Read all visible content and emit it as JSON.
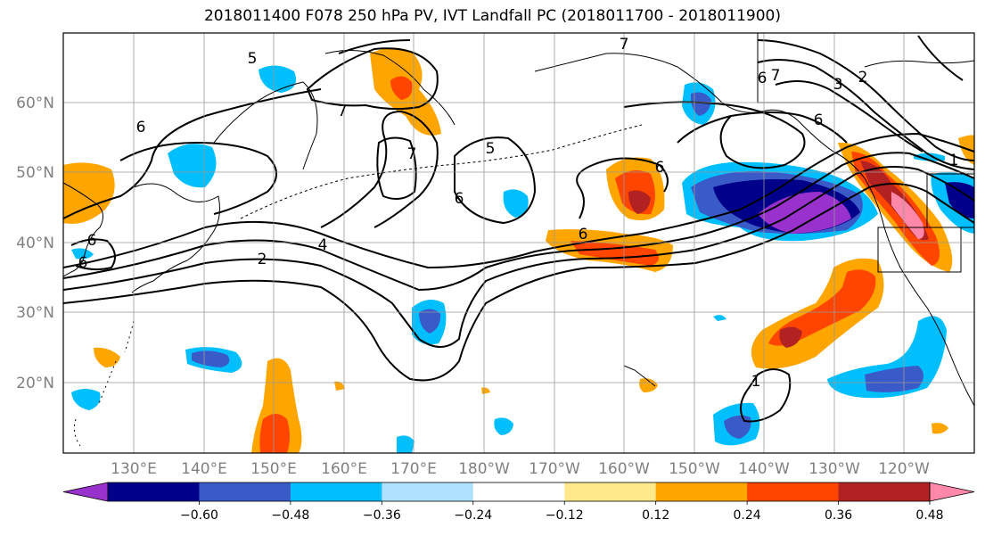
{
  "title": "2018011400 F078 250 hPa PV, IVT Landfall PC (2018011700 - 2018011900)",
  "latitude_labels": [
    "60°N",
    "50°N",
    "40°N",
    "30°N",
    "20°N"
  ],
  "longitude_labels": [
    "130°E",
    "140°E",
    "150°E",
    "160°E",
    "170°E",
    "180°W",
    "170°W",
    "160°W",
    "150°W",
    "140°W",
    "130°W",
    "120°W"
  ],
  "contour_labels": [
    "5",
    "6",
    "7",
    "7",
    "5",
    "6",
    "6",
    "6",
    "6",
    "4",
    "2",
    "6",
    "6",
    "6",
    "7",
    "7",
    "3",
    "2",
    "1",
    "1"
  ],
  "colorbar": {
    "tick_labels": [
      "−0.60",
      "−0.48",
      "−0.36",
      "−0.24",
      "−0.12",
      "0.12",
      "0.24",
      "0.36",
      "0.48",
      "0.60"
    ],
    "colors": [
      "#9932cc",
      "#00008b",
      "#3a5bc7",
      "#00bfff",
      "#b0e2ff",
      "#ffffff",
      "#ffe98a",
      "#ffa500",
      "#ff4500",
      "#b22222",
      "#ff88aa"
    ]
  },
  "shading_colors": {
    "neg_light": "#00bfff",
    "neg_mid": "#3a5bc7",
    "neg_dark": "#00008b",
    "neg_extreme": "#9932cc",
    "pos_light": "#ffe98a",
    "pos_mid": "#ffa500",
    "pos_strong": "#ff4500",
    "pos_dark": "#b22222"
  }
}
